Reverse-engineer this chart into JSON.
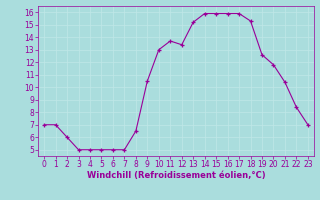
{
  "x": [
    0,
    1,
    2,
    3,
    4,
    5,
    6,
    7,
    8,
    9,
    10,
    11,
    12,
    13,
    14,
    15,
    16,
    17,
    18,
    19,
    20,
    21,
    22,
    23
  ],
  "y": [
    7,
    7,
    6,
    5,
    5,
    5,
    5,
    5,
    6.5,
    10.5,
    13,
    13.7,
    13.4,
    15.2,
    15.9,
    15.9,
    15.9,
    15.9,
    15.3,
    12.6,
    11.8,
    10.4,
    8.4,
    7
  ],
  "line_color": "#990099",
  "marker": "+",
  "marker_color": "#990099",
  "bg_color": "#aadddd",
  "grid_color": "#bbeeee",
  "xlabel": "Windchill (Refroidissement éolien,°C)",
  "xlabel_color": "#990099",
  "tick_color": "#990099",
  "ylim": [
    4.5,
    16.5
  ],
  "xlim": [
    -0.5,
    23.5
  ],
  "yticks": [
    5,
    6,
    7,
    8,
    9,
    10,
    11,
    12,
    13,
    14,
    15,
    16
  ],
  "xticks": [
    0,
    1,
    2,
    3,
    4,
    5,
    6,
    7,
    8,
    9,
    10,
    11,
    12,
    13,
    14,
    15,
    16,
    17,
    18,
    19,
    20,
    21,
    22,
    23
  ]
}
